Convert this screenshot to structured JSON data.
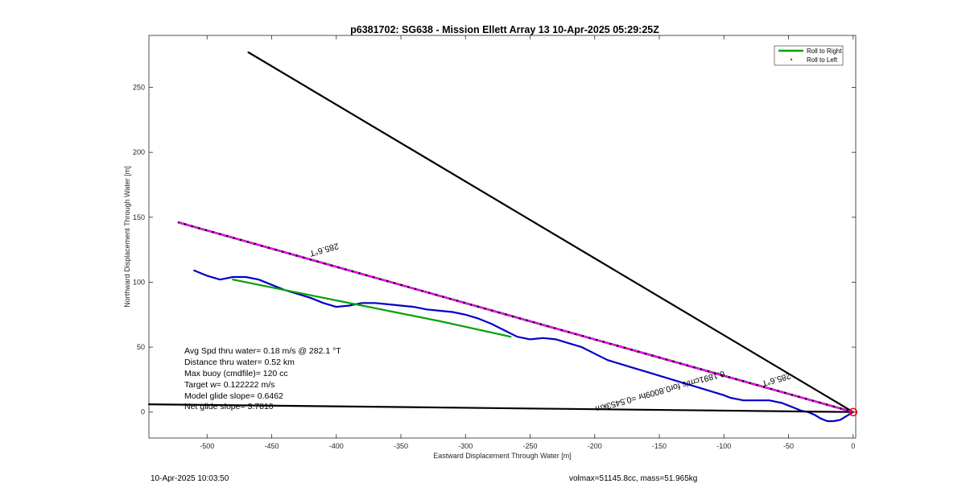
{
  "chart_data": {
    "type": "line",
    "title": "p6381702: SG638 - Mission Ellett Array 13 10-Apr-2025 05:29:25Z",
    "xlabel": "Eastward Displacement Through Water [m]",
    "ylabel": "Northward Displacement Through Water [m]",
    "xlim": [
      -545,
      2
    ],
    "ylim": [
      -20,
      290
    ],
    "xticks": [
      -500,
      -450,
      -400,
      -350,
      -300,
      -250,
      -200,
      -150,
      -100,
      -50,
      0
    ],
    "yticks": [
      0,
      50,
      100,
      150,
      200,
      250
    ],
    "grid": false,
    "legend": {
      "placement": "top-right",
      "entries": [
        {
          "label": "Roll to Right",
          "color": "#00a000"
        },
        {
          "label": "Roll to Left",
          "color": "#ff0000"
        }
      ]
    },
    "series": [
      {
        "color": "#0000c8",
        "x": [
          0,
          -5,
          -10,
          -15,
          -20,
          -25,
          -30,
          -35,
          -40,
          -45,
          -50,
          -55,
          -60,
          -65,
          -70,
          -75,
          -80,
          -85,
          -90,
          -95,
          -100,
          -110,
          -120,
          -130,
          -140,
          -150,
          -160,
          -170,
          -180,
          -190,
          -200,
          -210,
          -220,
          -230,
          -240,
          -250,
          -260,
          -270,
          -280,
          -290,
          -300,
          -310,
          -320,
          -330,
          -340,
          -350,
          -360,
          -370,
          -380,
          -390,
          -400,
          -410,
          -420,
          -430,
          -440,
          -450,
          -460,
          -470,
          -480,
          -490,
          -500,
          -510
        ],
        "y": [
          0,
          -3,
          -6,
          -7,
          -7,
          -5,
          -2,
          0,
          1,
          3,
          5,
          7,
          8,
          9,
          9,
          9,
          9,
          9,
          10,
          11,
          13,
          16,
          19,
          22,
          25,
          28,
          31,
          34,
          37,
          40,
          45,
          50,
          53,
          56,
          57,
          56,
          58,
          63,
          68,
          72,
          75,
          77,
          78,
          79,
          81,
          82,
          83,
          84,
          84,
          82,
          81,
          84,
          88,
          91,
          94,
          98,
          102,
          104,
          104,
          102,
          105,
          109
        ]
      },
      {
        "color": "#00a000",
        "x": [
          -265,
          -320,
          -380,
          -430,
          -480
        ],
        "y": [
          58,
          70,
          82,
          92,
          102
        ]
      },
      {
        "color": "#000000",
        "x": [
          0,
          -468
        ],
        "y": [
          0,
          277
        ]
      },
      {
        "color": "#000000",
        "x": [
          0,
          -545
        ],
        "y": [
          0,
          6
        ]
      },
      {
        "color": "#000000",
        "x": [
          0,
          -522
        ],
        "y": [
          0,
          146
        ]
      },
      {
        "color": "#ff00ff",
        "x": [
          0,
          -522
        ],
        "y": [
          0,
          146
        ]
      }
    ],
    "annotations": [
      {
        "text": "285.6°T",
        "x": -410,
        "y": 127,
        "angle": -15.6
      },
      {
        "text": "285.6°T",
        "x": -60,
        "y": 27,
        "angle": -15.6
      },
      {
        "text": "0.1891cm/s for0.8009hr =0.5453km",
        "x": -150,
        "y": 18,
        "angle": -15.6
      }
    ],
    "notes": [
      "Avg Spd thru water=  0.18 m/s @ 282.1 °T",
      "Distance thru water=  0.52 km",
      "Max buoy (cmdfile)= 120 cc",
      "Target w= 0.122222 m/s",
      "Model glide slope= 0.6462",
      "Net glide slope= 3.7810"
    ],
    "origin_marker_color": "#ff0000"
  },
  "footer": {
    "timestamp": "10-Apr-2025 10:03:50",
    "volmass": "volmax=51145.8cc, mass=51.965kg"
  }
}
